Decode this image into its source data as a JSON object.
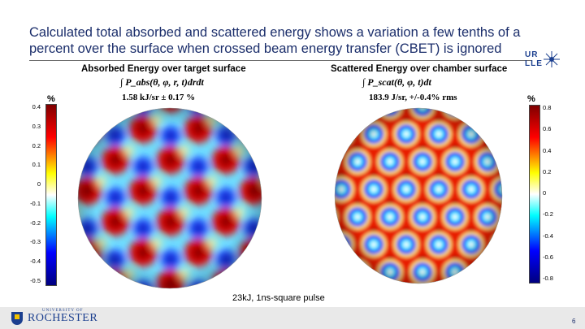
{
  "slide": {
    "title": "Calculated total absorbed and scattered energy shows a variation a few tenths of a percent over the surface when crossed beam energy transfer (CBET) is ignored",
    "caption": "23kJ, 1ns-square pulse",
    "page_number": "6"
  },
  "logo": {
    "line1": "UR",
    "line2": "LLE"
  },
  "footer": {
    "institution_small": "UNIVERSITY OF",
    "institution": "ROCHESTER"
  },
  "left_panel": {
    "title": "Absorbed Energy over target surface",
    "formula": "∫ P_abs(θ, φ, r, t)drdt",
    "stat": "1.58 kJ/sr ± 0.17 %",
    "unit": "%",
    "colorbar_ticks": [
      "0.4",
      "0.3",
      "0.2",
      "0.1",
      "0",
      "-0.1",
      "-0.2",
      "-0.3",
      "-0.4",
      "-0.5"
    ]
  },
  "right_panel": {
    "title": "Scattered Energy over chamber surface",
    "formula": "∫ P_scat(θ, φ, t)dt",
    "stat": "183.9 J/sr, +/-0.4% rms",
    "unit": "%",
    "colorbar_ticks": [
      "0.8",
      "0.6",
      "0.4",
      "0.2",
      "0",
      "-0.2",
      "-0.4",
      "-0.6",
      "-0.8"
    ]
  },
  "colors": {
    "title": "#1b2e6b",
    "colormap": [
      "#7f0000",
      "#ff0000",
      "#ffff00",
      "#ffffff",
      "#00ffff",
      "#0000ff",
      "#00007f"
    ]
  }
}
